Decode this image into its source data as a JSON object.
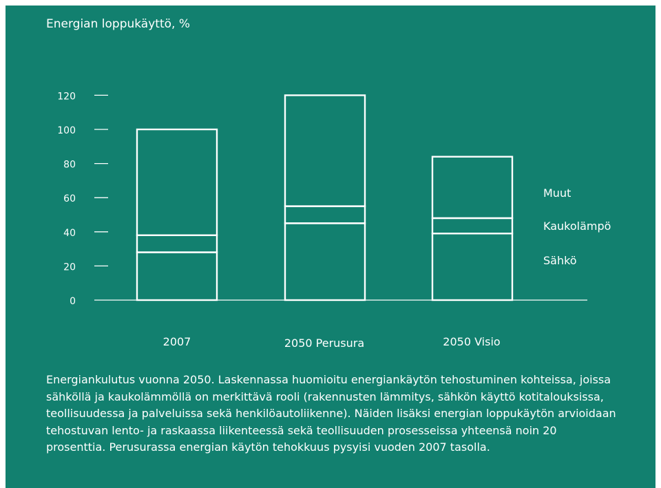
{
  "chart_data": {
    "type": "bar",
    "stacked": true,
    "title": "Energian loppukäyttö, %",
    "categories": [
      "2007",
      "2050 Perusura",
      "2050 Visio"
    ],
    "series": [
      {
        "name": "Sähkö",
        "values": [
          28,
          45,
          39
        ]
      },
      {
        "name": "Kaukolämpö",
        "values": [
          10,
          10,
          9
        ]
      },
      {
        "name": "Muut",
        "values": [
          62,
          65,
          36
        ]
      }
    ],
    "totals": [
      100,
      120,
      84
    ],
    "y_ticks": [
      "0",
      "20",
      "40",
      "60",
      "80",
      "100",
      "120"
    ],
    "ylim": [
      0,
      120
    ],
    "grid": false,
    "legend_position": "right",
    "colors": {
      "background": "#12806f",
      "stroke": "#ffffff"
    }
  },
  "caption": "Energiankulutus vuonna 2050. Laskennassa huomioitu energiankäytön tehostuminen kohteissa, joissa sähköllä ja kaukolämmöllä on merkittävä rooli (rakennusten lämmitys, sähkön käyttö kotitalouksissa, teollisuudessa ja palveluissa sekä henkilöautoliikenne). Näiden lisäksi energian loppukäytön arvioidaan tehostuvan lento- ja raskaassa liikenteessä sekä teollisuuden prosesseissa yhteensä noin 20 prosenttia. Perusurassa energian käytön tehokkuus pysyisi vuoden 2007 tasolla."
}
